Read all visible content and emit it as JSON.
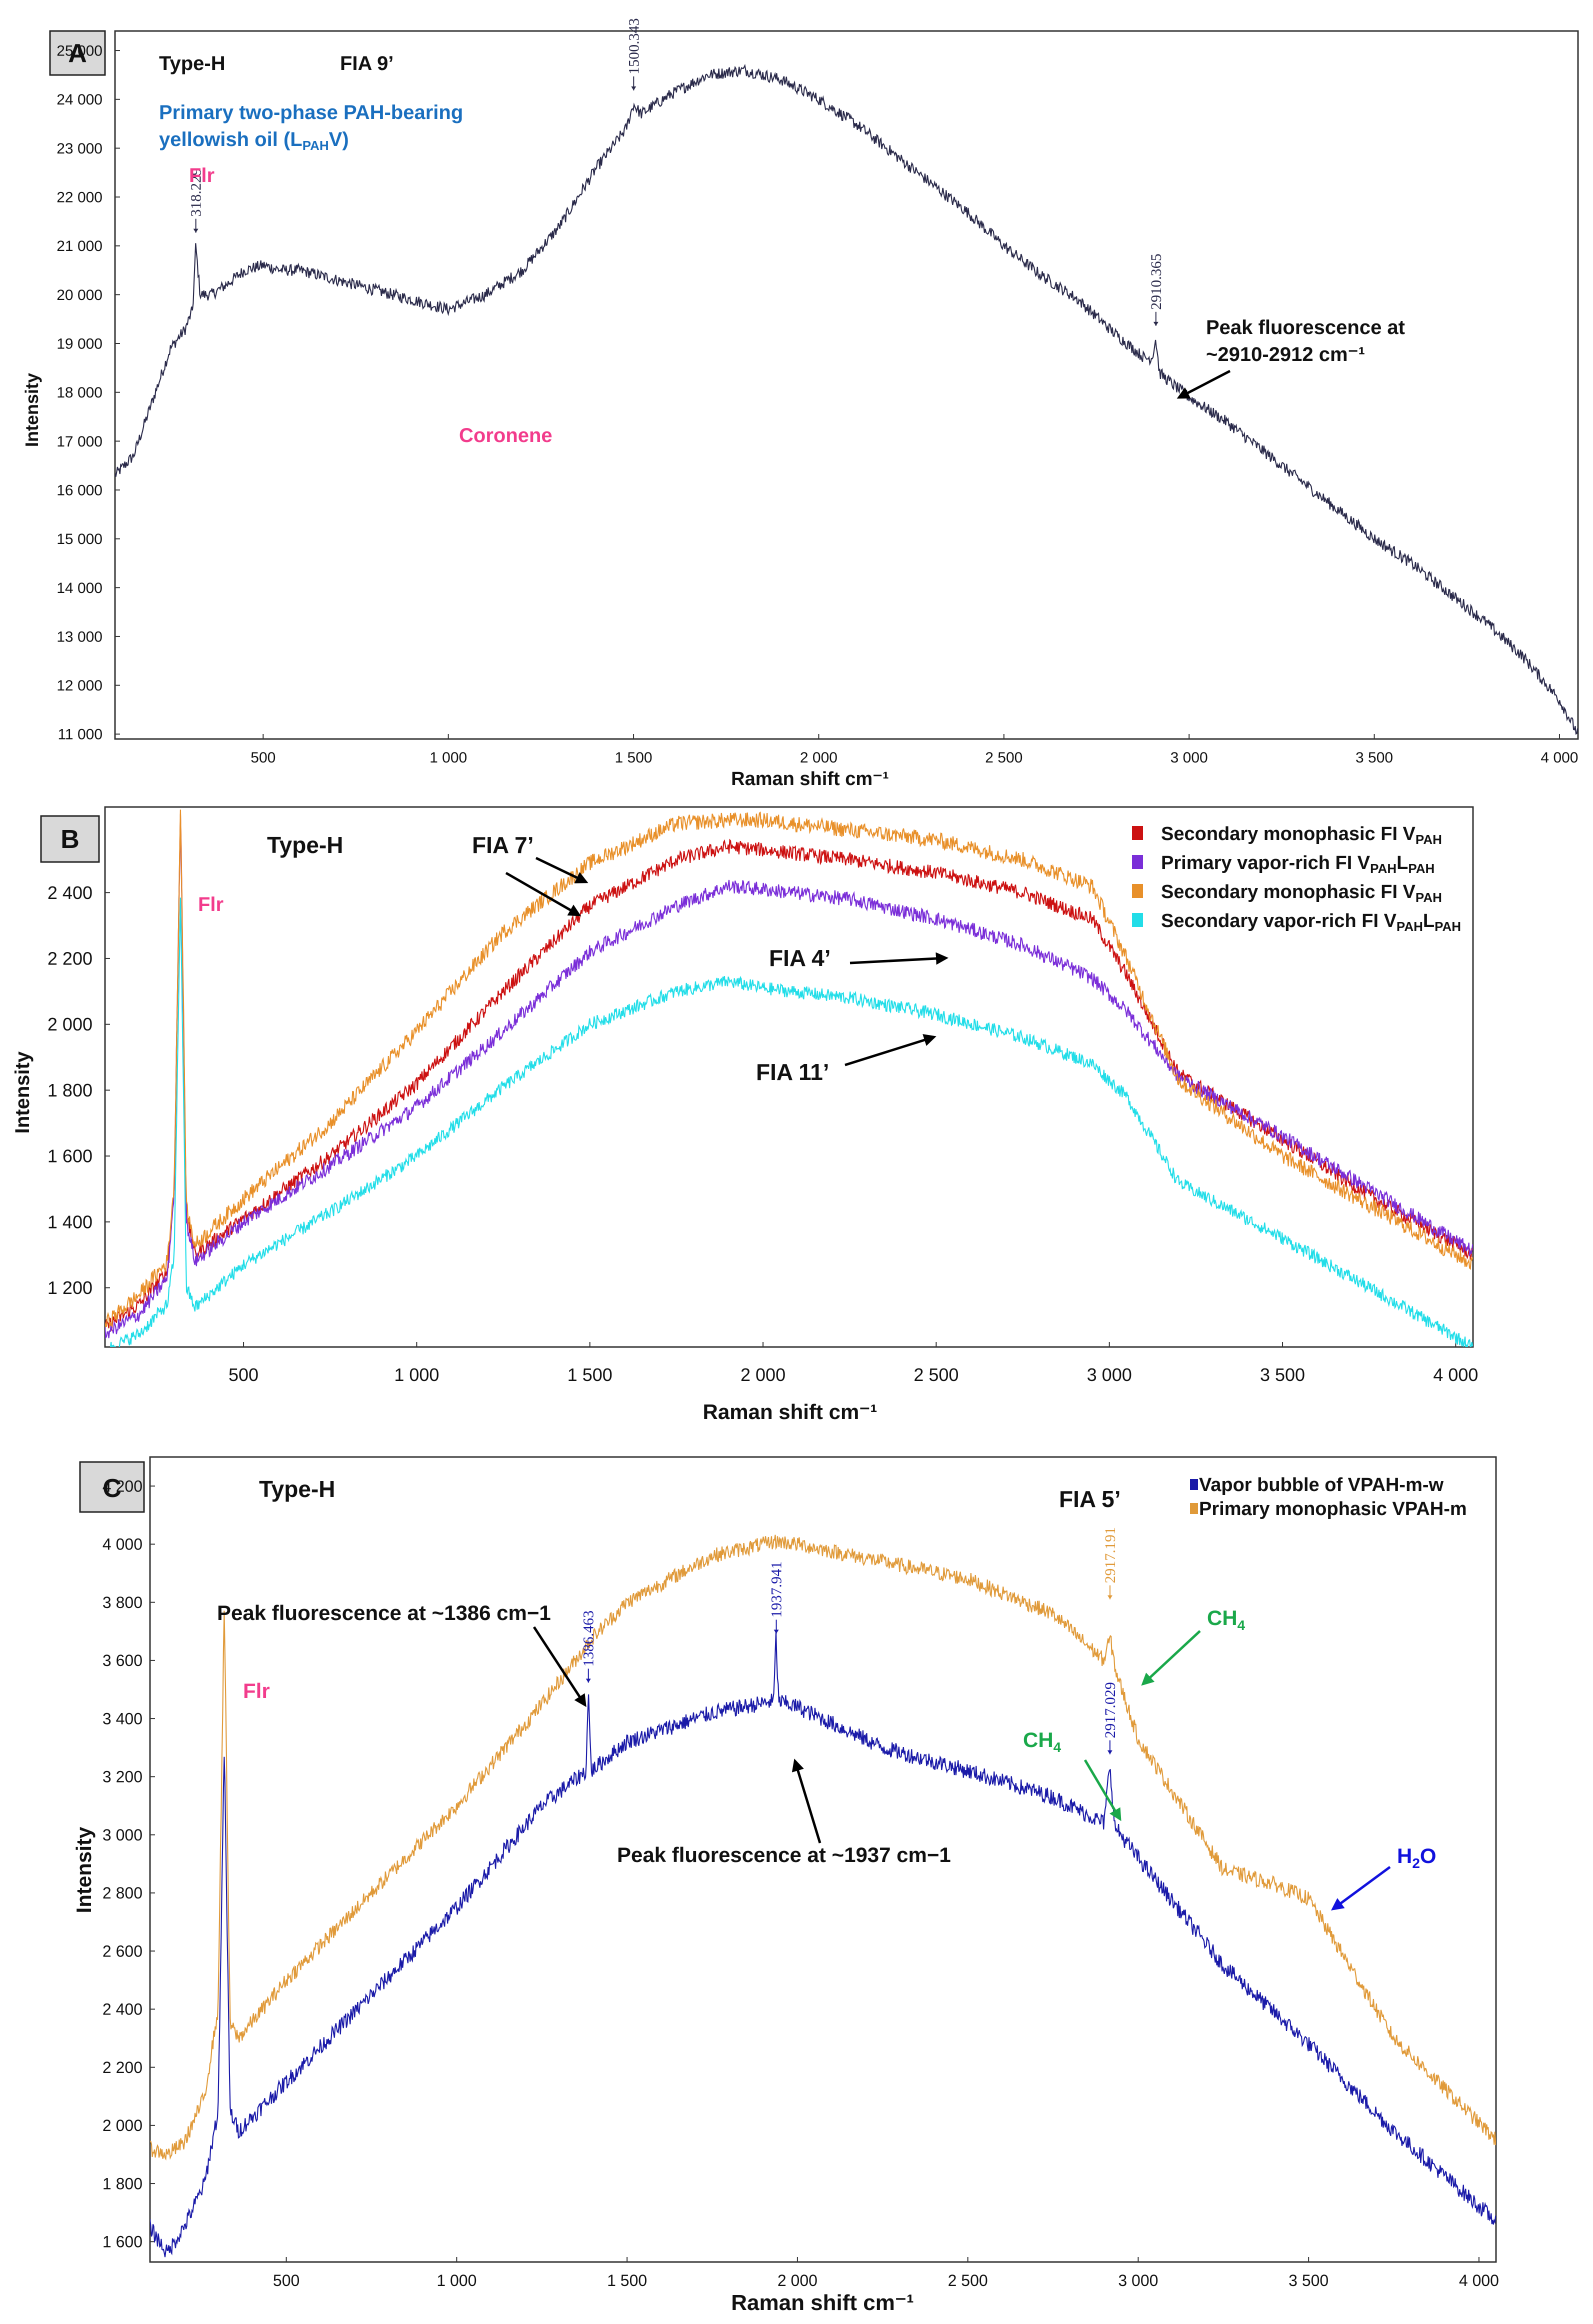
{
  "colors": {
    "panelA_line": "#2a2a4a",
    "panelB_red": "#cc1111",
    "panelB_purple": "#7a2ed8",
    "panelB_orange": "#e8902a",
    "panelB_cyan": "#22dde8",
    "panelC_blue": "#1a1aa8",
    "panelC_orange": "#e09a3a",
    "flr_pink": "#f23c8c",
    "blue_label": "#1a6fbf",
    "green_label": "#1aa84a",
    "water_blue": "#1111dd"
  },
  "panels": {
    "A": {
      "letter": "A",
      "type_label": "Type-H",
      "fia": "FIA 9’",
      "desc_line1": "Primary two-phase PAH-bearing",
      "desc_line2_pre": "yellowish oil (L",
      "desc_line2_sub": "PAH",
      "desc_line2_post": "V)",
      "flr": "Flr",
      "coronene": "Coronene",
      "peak_text1": "Peak fluorescence at",
      "peak_text2": "~2910-2912 cm⁻¹"
    },
    "B": {
      "letter": "B",
      "type_label": "Type-H",
      "flr": "Flr",
      "fia7": "FIA 7’",
      "fia4": "FIA 4’",
      "fia11": "FIA 11’"
    },
    "C": {
      "letter": "C",
      "type_label": "Type-H",
      "fia": "FIA 5’",
      "flr": "Flr",
      "peak1386": "Peak fluorescence at ~1386 cm−1",
      "peak1937": "Peak fluorescence at ~1937 cm−1",
      "ch4_upper": "CH",
      "ch4_lower": "CH",
      "ch4_sub": "4",
      "h2o": "H",
      "h2o_sub": "2",
      "h2o_post": "O"
    }
  },
  "chart_data": [
    {
      "panel": "A",
      "type": "line",
      "title": "",
      "xlabel": "Raman shift cm⁻¹",
      "ylabel": "Intensity",
      "xlim": [
        100,
        4050
      ],
      "ylim": [
        10900,
        25400
      ],
      "xticks": [
        500,
        1000,
        1500,
        2000,
        2500,
        3000,
        3500,
        4000
      ],
      "xtick_labels": [
        "500",
        "1 000",
        "1 500",
        "2 000",
        "2 500",
        "3 000",
        "3 500",
        "4 000"
      ],
      "yticks": [
        11000,
        12000,
        13000,
        14000,
        15000,
        16000,
        17000,
        18000,
        19000,
        20000,
        21000,
        22000,
        23000,
        24000,
        25000
      ],
      "ytick_labels": [
        "11 000",
        "12 000",
        "13 000",
        "14 000",
        "15 000",
        "16 000",
        "17 000",
        "18 000",
        "19 000",
        "20 000",
        "21 000",
        "22 000",
        "23 000",
        "24 000",
        "25 000"
      ],
      "series": [
        {
          "name": "Primary two-phase PAH-bearing yellowish oil (LPAHV)",
          "color": "#2a2a4a",
          "noise": 120,
          "x": [
            100,
            150,
            200,
            250,
            290,
            310,
            318,
            330,
            360,
            400,
            450,
            500,
            550,
            600,
            650,
            700,
            800,
            900,
            1000,
            1100,
            1200,
            1300,
            1400,
            1480,
            1500,
            1520,
            1600,
            1700,
            1800,
            1850,
            1900,
            2000,
            2100,
            2200,
            2300,
            2400,
            2500,
            2600,
            2700,
            2800,
            2880,
            2900,
            2910,
            2920,
            2950,
            3000,
            3100,
            3200,
            3300,
            3400,
            3500,
            3600,
            3700,
            3800,
            3900,
            4000,
            4050
          ],
          "y": [
            16300,
            16700,
            17800,
            18900,
            19300,
            19700,
            21000,
            20000,
            20000,
            20200,
            20500,
            20600,
            20500,
            20500,
            20400,
            20300,
            20100,
            19900,
            19700,
            20000,
            20500,
            21400,
            22600,
            23400,
            23900,
            23700,
            24100,
            24500,
            24600,
            24500,
            24400,
            24000,
            23500,
            22900,
            22300,
            21700,
            21000,
            20400,
            19900,
            19200,
            18700,
            18700,
            19100,
            18400,
            18200,
            17900,
            17400,
            16800,
            16200,
            15600,
            15000,
            14500,
            13900,
            13300,
            12600,
            11700,
            11000
          ]
        }
      ],
      "peak_labels": [
        {
          "x": 318.229,
          "label": "318.229"
        },
        {
          "x": 1500.343,
          "label": "1500.343"
        },
        {
          "x": 2910.365,
          "label": "2910.365"
        }
      ]
    },
    {
      "panel": "B",
      "type": "line",
      "title": "",
      "xlabel": "Raman shift cm⁻¹",
      "ylabel": "Intensity",
      "xlim": [
        100,
        4050
      ],
      "ylim": [
        1020,
        2660
      ],
      "xticks": [
        500,
        1000,
        1500,
        2000,
        2500,
        3000,
        3500,
        4000
      ],
      "xtick_labels": [
        "500",
        "1 000",
        "1 500",
        "2 000",
        "2 500",
        "3 000",
        "3 500",
        "4 000"
      ],
      "yticks": [
        1200,
        1400,
        1600,
        1800,
        2000,
        2200,
        2400
      ],
      "ytick_labels": [
        "1 200",
        "1 400",
        "1 600",
        "1 800",
        "2 000",
        "2 200",
        "2 400"
      ],
      "legend_position": "top-right",
      "series": [
        {
          "name": "Secondary monophasic FI VPAH",
          "legend_main": "Secondary monophasic FI V",
          "legend_sub": "PAH",
          "legend_main2": "",
          "legend_sub2": "",
          "color": "#cc1111",
          "noise": 22,
          "x": [
            100,
            200,
            280,
            300,
            318,
            335,
            360,
            500,
            750,
            1000,
            1250,
            1500,
            1750,
            1900,
            2000,
            2250,
            2500,
            2750,
            2950,
            3050,
            3200,
            3500,
            3750,
            4050
          ],
          "y": [
            1080,
            1150,
            1250,
            1500,
            2660,
            1420,
            1300,
            1410,
            1600,
            1820,
            2100,
            2360,
            2500,
            2540,
            2530,
            2500,
            2460,
            2400,
            2320,
            2150,
            1850,
            1650,
            1480,
            1300
          ]
        },
        {
          "name": "Primary vapor-rich FI VPAHLPAH",
          "legend_main": "Primary vapor-rich FI  V",
          "legend_sub": "PAH",
          "legend_main2": "L",
          "legend_sub2": "PAH",
          "color": "#7a2ed8",
          "noise": 22,
          "x": [
            100,
            200,
            280,
            300,
            318,
            335,
            360,
            500,
            750,
            1000,
            1250,
            1500,
            1750,
            1900,
            2000,
            2250,
            2500,
            2750,
            2950,
            3050,
            3200,
            3500,
            3750,
            4050
          ],
          "y": [
            1060,
            1120,
            1230,
            1500,
            2650,
            1400,
            1280,
            1400,
            1570,
            1750,
            1980,
            2220,
            2360,
            2420,
            2410,
            2380,
            2320,
            2240,
            2140,
            2040,
            1840,
            1660,
            1500,
            1310
          ]
        },
        {
          "name": "Secondary monophasic FI VPAH",
          "legend_main": "Secondary monophasic FI  V",
          "legend_sub": "PAH",
          "legend_main2": "",
          "legend_sub2": "",
          "color": "#e8902a",
          "noise": 24,
          "x": [
            100,
            200,
            280,
            300,
            318,
            335,
            360,
            500,
            750,
            1000,
            1250,
            1500,
            1750,
            1900,
            2000,
            2250,
            2500,
            2750,
            2950,
            3050,
            3200,
            3500,
            3750,
            4050
          ],
          "y": [
            1090,
            1180,
            1280,
            1520,
            2660,
            1440,
            1330,
            1470,
            1700,
            1980,
            2280,
            2490,
            2610,
            2620,
            2620,
            2590,
            2560,
            2500,
            2420,
            2200,
            1830,
            1600,
            1450,
            1270
          ]
        },
        {
          "name": "Secondary vapor-rich FI VPAHLPAH",
          "legend_main": "Secondary vapor-rich FI  V",
          "legend_sub": "PAH",
          "legend_main2": "L",
          "legend_sub2": "PAH",
          "color": "#22dde8",
          "noise": 20,
          "x": [
            100,
            200,
            280,
            300,
            318,
            335,
            360,
            500,
            750,
            1000,
            1250,
            1500,
            1750,
            1900,
            2000,
            2250,
            2500,
            2750,
            2950,
            3050,
            3200,
            3500,
            3750,
            4050
          ],
          "y": [
            1010,
            1060,
            1150,
            1300,
            2400,
            1200,
            1140,
            1270,
            1430,
            1600,
            1810,
            2000,
            2100,
            2130,
            2110,
            2080,
            2030,
            1960,
            1880,
            1780,
            1520,
            1350,
            1200,
            1020
          ]
        }
      ]
    },
    {
      "panel": "C",
      "type": "line",
      "title": "",
      "xlabel": "Raman shift cm⁻¹",
      "ylabel": "Intensity",
      "xlim": [
        100,
        4050
      ],
      "ylim": [
        1530,
        4300
      ],
      "xticks": [
        500,
        1000,
        1500,
        2000,
        2500,
        3000,
        3500,
        4000
      ],
      "xtick_labels": [
        "500",
        "1 000",
        "1 500",
        "2 000",
        "2 500",
        "3 000",
        "3 500",
        "4 000"
      ],
      "yticks": [
        1600,
        1800,
        2000,
        2200,
        2400,
        2600,
        2800,
        3000,
        3200,
        3400,
        3600,
        3800,
        4000,
        4200
      ],
      "ytick_labels": [
        "1 600",
        "1 800",
        "2 000",
        "2 200",
        "2 400",
        "2 600",
        "2 800",
        "3 000",
        "3 200",
        "3 400",
        "3 600",
        "3 800",
        "4 000",
        "4 200"
      ],
      "legend_position": "top-right",
      "series": [
        {
          "name": "Vapor bubble of VPAH-m-w",
          "legend_text": "Vapor bubble of VPAH-m-w",
          "color": "#1a1aa8",
          "noise": 28,
          "x": [
            100,
            150,
            200,
            260,
            300,
            318,
            335,
            360,
            500,
            750,
            1000,
            1250,
            1380,
            1386,
            1395,
            1500,
            1750,
            1930,
            1937,
            1945,
            2000,
            2250,
            2500,
            2750,
            2900,
            2917,
            2930,
            3000,
            3250,
            3500,
            3750,
            4050
          ],
          "y": [
            1650,
            1560,
            1650,
            1800,
            2050,
            3300,
            2050,
            1980,
            2150,
            2450,
            2750,
            3100,
            3220,
            3500,
            3220,
            3320,
            3420,
            3460,
            3680,
            3460,
            3440,
            3300,
            3220,
            3130,
            3040,
            3250,
            3030,
            2920,
            2550,
            2280,
            1980,
            1670
          ]
        },
        {
          "name": "Primary monophasic VPAH-m",
          "legend_text": "Primary monophasic VPAH-m",
          "color": "#e09a3a",
          "noise": 26,
          "x": [
            100,
            150,
            200,
            260,
            300,
            318,
            335,
            360,
            500,
            750,
            1000,
            1250,
            1400,
            1500,
            1750,
            1937,
            2000,
            2250,
            2500,
            2750,
            2900,
            2917,
            2935,
            3000,
            3250,
            3400,
            3500,
            3750,
            4050
          ],
          "y": [
            1920,
            1900,
            1940,
            2100,
            2400,
            3800,
            2350,
            2300,
            2500,
            2800,
            3100,
            3450,
            3680,
            3800,
            3960,
            4010,
            4000,
            3940,
            3880,
            3760,
            3600,
            3680,
            3560,
            3330,
            2880,
            2830,
            2780,
            2300,
            1950
          ]
        }
      ],
      "peak_labels": [
        {
          "x": 1386.463,
          "label": "1386.463",
          "color": "#1a1aa8"
        },
        {
          "x": 1937.941,
          "label": "1937.941",
          "color": "#1a1aa8"
        },
        {
          "x": 2917.191,
          "label": "2917.191",
          "color": "#e09a3a"
        },
        {
          "x": 2917.029,
          "label": "2917.029",
          "color": "#1a1aa8"
        }
      ]
    }
  ]
}
